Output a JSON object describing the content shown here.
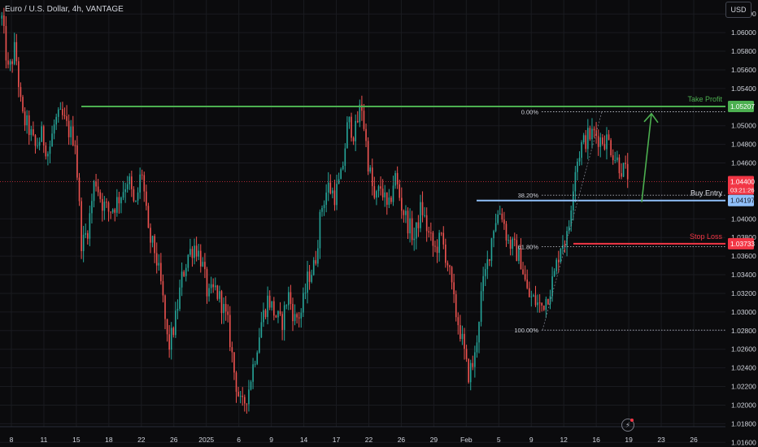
{
  "title": "Euro / U.S. Dollar, 4h, VANTAGE",
  "currency_button": "USD",
  "colors": {
    "background": "#0b0b0d",
    "grid": "#1a1b20",
    "candle_up": "#26a69a",
    "candle_down": "#ef5350",
    "take_profit": "#4caf50",
    "stop_loss": "#f23645",
    "buy_entry": "#90bff9",
    "current_price": "#f23645"
  },
  "chart_data": {
    "type": "candlestick",
    "y_axis": {
      "min": 1.0155,
      "max": 1.0635,
      "tick_labels": [
        "1.06200",
        "1.06000",
        "1.05800",
        "1.05600",
        "1.05400",
        "1.05000",
        "1.04800",
        "1.04600",
        "1.04000",
        "1.03800",
        "1.03600",
        "1.03400",
        "1.03200",
        "1.03000",
        "1.02800",
        "1.02600",
        "1.02400",
        "1.02200",
        "1.02000",
        "1.01800",
        "1.01600"
      ]
    },
    "x_axis": {
      "tick_labels": [
        "8",
        "11",
        "15",
        "18",
        "22",
        "26",
        "2025",
        "6",
        "9",
        "14",
        "17",
        "22",
        "26",
        "29",
        "Feb",
        "5",
        "9",
        "12",
        "16",
        "19",
        "23",
        "26"
      ]
    },
    "price_path": [
      1.0615,
      1.0555,
      1.0585,
      1.051,
      1.0498,
      1.0476,
      1.049,
      1.047,
      1.0505,
      1.051,
      1.0495,
      1.0485,
      1.037,
      1.0392,
      1.0445,
      1.0418,
      1.0408,
      1.0415,
      1.0428,
      1.0445,
      1.0408,
      1.0455,
      1.0382,
      1.0365,
      1.0325,
      1.026,
      1.0288,
      1.0335,
      1.0362,
      1.0372,
      1.0355,
      1.0315,
      1.0325,
      1.031,
      1.0285,
      1.023,
      1.0195,
      1.0215,
      1.0252,
      1.029,
      1.0315,
      1.0298,
      1.0286,
      1.032,
      1.0292,
      1.03,
      1.0338,
      1.035,
      1.0412,
      1.0435,
      1.0425,
      1.0445,
      1.0505,
      1.049,
      1.0525,
      1.0462,
      1.0418,
      1.0436,
      1.0405,
      1.0448,
      1.0415,
      1.0395,
      1.0378,
      1.0414,
      1.0385,
      1.0366,
      1.038,
      1.0352,
      1.0305,
      1.0275,
      1.0232,
      1.0248,
      1.0318,
      1.0355,
      1.0398,
      1.041,
      1.0376,
      1.0368,
      1.0355,
      1.0318,
      1.0312,
      1.0305,
      1.0318,
      1.034,
      1.0375,
      1.038,
      1.0452,
      1.0478,
      1.0488,
      1.0492,
      1.0485,
      1.0485,
      1.0468,
      1.0455,
      1.0448
    ],
    "levels": {
      "take_profit": {
        "label": "Take Profit",
        "price": 1.05207,
        "price_label": "1.05207"
      },
      "buy_entry": {
        "label": "Buy Entry",
        "price": 1.04197,
        "price_label": "1.04197"
      },
      "stop_loss": {
        "label": "Stop Loss",
        "price": 1.03733,
        "price_label": "1.03733"
      },
      "current": {
        "price": 1.044,
        "price_label": "1.04400",
        "countdown": "03:21:26"
      }
    },
    "fibonacci": {
      "high": 1.0515,
      "low": 1.02805,
      "levels": [
        {
          "ratio": 0.0,
          "label": "0.00%"
        },
        {
          "ratio": 0.382,
          "label": "38.20%"
        },
        {
          "ratio": 0.618,
          "label": "61.80%"
        },
        {
          "ratio": 1.0,
          "label": "100.00%"
        }
      ]
    },
    "projection_arrow": {
      "from_price": 1.0418,
      "to_price": 1.0513
    }
  }
}
